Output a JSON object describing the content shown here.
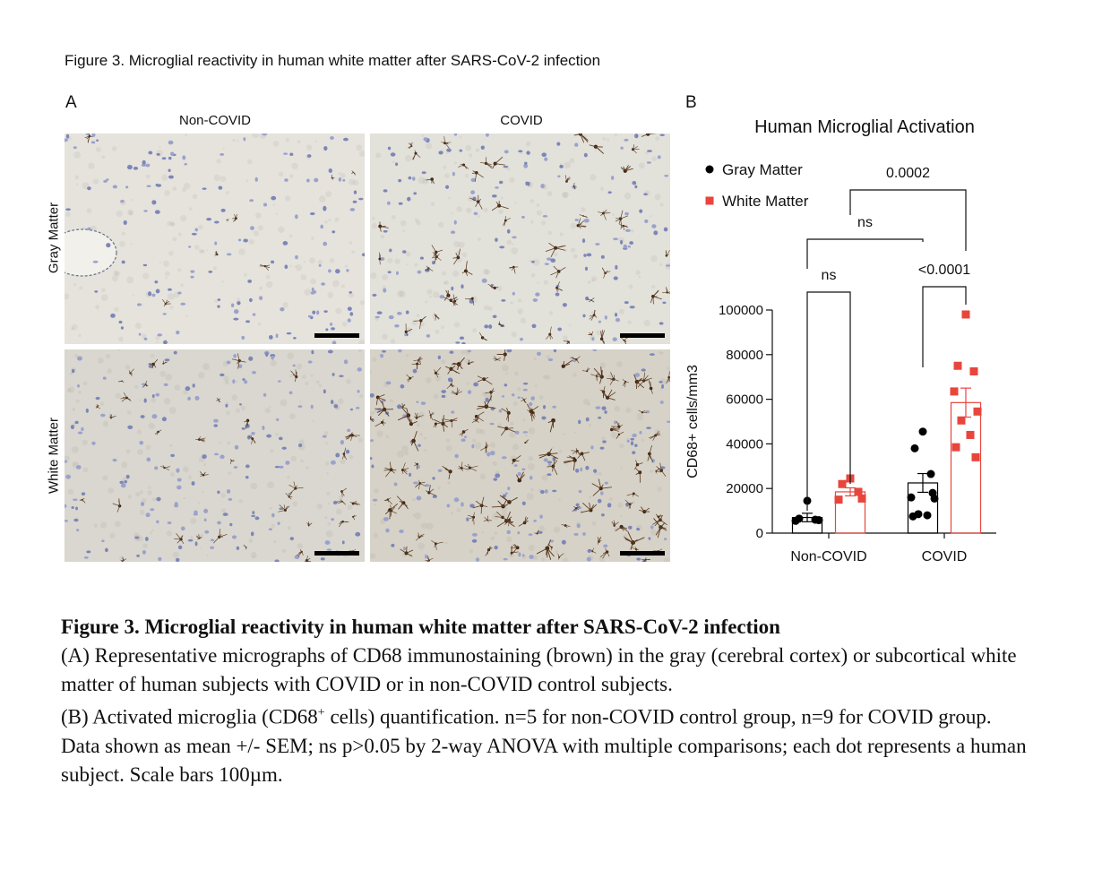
{
  "figure_title": "Figure 3. Microglial reactivity in human white matter after SARS-CoV-2 infection",
  "panel_a": {
    "letter": "A",
    "columns": [
      "Non-COVID",
      "COVID"
    ],
    "rows": [
      "Gray Matter",
      "White Matter"
    ]
  },
  "panel_b": {
    "letter": "B"
  },
  "chart_data": {
    "type": "bar",
    "title": "Human Microglial Activation",
    "ylabel": "CD68+ cells/mm3",
    "xlabel": "",
    "categories": [
      "Non-COVID",
      "COVID"
    ],
    "ylim": [
      0,
      100000
    ],
    "yticks": [
      0,
      20000,
      40000,
      60000,
      80000,
      100000
    ],
    "legend_position": "top-left",
    "series": [
      {
        "name": "Gray Matter",
        "color": "#000000",
        "marker": "circle",
        "means": [
          7000,
          22500
        ],
        "sem": [
          1900,
          4200
        ],
        "points": [
          [
            14500,
            6500,
            6000,
            5500,
            5800
          ],
          [
            45500,
            38000,
            26500,
            16000,
            15500,
            8500,
            8000,
            7500,
            18000
          ]
        ]
      },
      {
        "name": "White Matter",
        "color": "#e8453c",
        "marker": "square",
        "means": [
          18500,
          58500
        ],
        "sem": [
          1800,
          6500
        ],
        "points": [
          [
            24500,
            22000,
            18500,
            15000,
            15500
          ],
          [
            98000,
            75000,
            72500,
            63500,
            54500,
            50500,
            44000,
            38500,
            34000
          ]
        ]
      }
    ],
    "comparisons": [
      {
        "label": "ns"
      },
      {
        "label": "<0.0001"
      },
      {
        "label": "ns"
      },
      {
        "label": "0.0002"
      }
    ]
  },
  "caption": {
    "title": "Figure 3. Microglial reactivity in human white matter after SARS-CoV-2 infection",
    "line_a": "(A) Representative micrographs of CD68 immunostaining (brown) in the gray (cerebral cortex) or subcortical white matter of human subjects with COVID or in non-COVID control subjects.",
    "line_b_pre": "(B) Activated microglia (CD68",
    "line_b_sup": "+",
    "line_b_post": " cells) quantification. n=5 for non-COVID control group, n=9 for COVID group.",
    "line_c": "Data shown as mean +/- SEM; ns p>0.05 by 2-way ANOVA with multiple comparisons; each dot represents a human subject. Scale bars 100µm."
  }
}
